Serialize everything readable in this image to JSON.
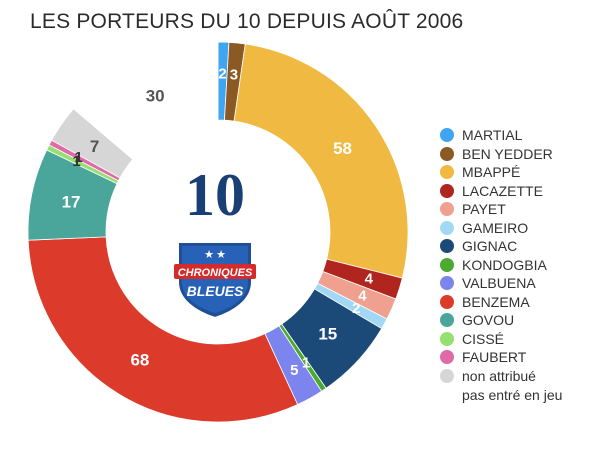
{
  "chart_data": {
    "type": "pie",
    "variant": "donut",
    "title": "LES PORTEURS DU 10 DEPUIS AOÛT 2006",
    "center_text": "10",
    "badge": {
      "line1": "CHRONIQUES",
      "line2": "BLEUES"
    },
    "slices": [
      {
        "name": "MARTIAL",
        "value": 2,
        "color": "#3fa5f0",
        "label": "2",
        "label_color": "#ffffff"
      },
      {
        "name": "BEN YEDDER",
        "value": 3,
        "color": "#8b5a24",
        "label": "3",
        "label_color": "#ffffff"
      },
      {
        "name": "MBAPPÉ",
        "value": 58,
        "color": "#f0b941",
        "label": "58",
        "label_color": "#ffffff"
      },
      {
        "name": "LACAZETTE",
        "value": 4,
        "color": "#b0261e",
        "label": "4",
        "label_color": "#ffffff"
      },
      {
        "name": "PAYET",
        "value": 4,
        "color": "#f0a08e",
        "label": "4",
        "label_color": "#ffffff"
      },
      {
        "name": "GAMEIRO",
        "value": 2,
        "color": "#a3d8f5",
        "label": "2",
        "label_color": "#ffffff"
      },
      {
        "name": "GIGNAC",
        "value": 15,
        "color": "#1c4a78",
        "label": "15",
        "label_color": "#ffffff"
      },
      {
        "name": "KONDOGBIA",
        "value": 1,
        "color": "#4caa30",
        "label": "1",
        "label_color": "#ffffff"
      },
      {
        "name": "VALBUENA",
        "value": 5,
        "color": "#7b85ed",
        "label": "5",
        "label_color": "#ffffff"
      },
      {
        "name": "BENZEMA",
        "value": 68,
        "color": "#dc3a2b",
        "label": "68",
        "label_color": "#ffffff"
      },
      {
        "name": "GOVOU",
        "value": 17,
        "color": "#4aa69a",
        "label": "17",
        "label_color": "#ffffff"
      },
      {
        "name": "CISSÉ",
        "value": 1,
        "color": "#95e070",
        "label": "1",
        "label_color": "#333333"
      },
      {
        "name": "FAUBERT",
        "value": 1,
        "color": "#e06aa8",
        "label": "1",
        "label_color": "#333333"
      },
      {
        "name": "non attribué",
        "value": 7,
        "color": "#d6d6d6",
        "label": "7",
        "label_color": "#555555"
      },
      {
        "name": "pas entré en jeu",
        "value": 30,
        "color": "#ffffff",
        "label": "30",
        "label_color": "#555555"
      }
    ],
    "legend": [
      {
        "label": "MARTIAL",
        "color": "#3fa5f0"
      },
      {
        "label": "BEN YEDDER",
        "color": "#8b5a24"
      },
      {
        "label": "MBAPPÉ",
        "color": "#f0b941"
      },
      {
        "label": "LACAZETTE",
        "color": "#b0261e"
      },
      {
        "label": "PAYET",
        "color": "#f0a08e"
      },
      {
        "label": "GAMEIRO",
        "color": "#a3d8f5"
      },
      {
        "label": "GIGNAC",
        "color": "#1c4a78"
      },
      {
        "label": "KONDOGBIA",
        "color": "#4caa30"
      },
      {
        "label": "VALBUENA",
        "color": "#7b85ed"
      },
      {
        "label": "BENZEMA",
        "color": "#dc3a2b"
      },
      {
        "label": "GOVOU",
        "color": "#4aa69a"
      },
      {
        "label": "CISSÉ",
        "color": "#95e070"
      },
      {
        "label": "FAUBERT",
        "color": "#e06aa8"
      },
      {
        "label": "non attribué",
        "label2": "pas entré en jeu",
        "color": "#d6d6d6"
      }
    ],
    "legend_placement": "right"
  }
}
